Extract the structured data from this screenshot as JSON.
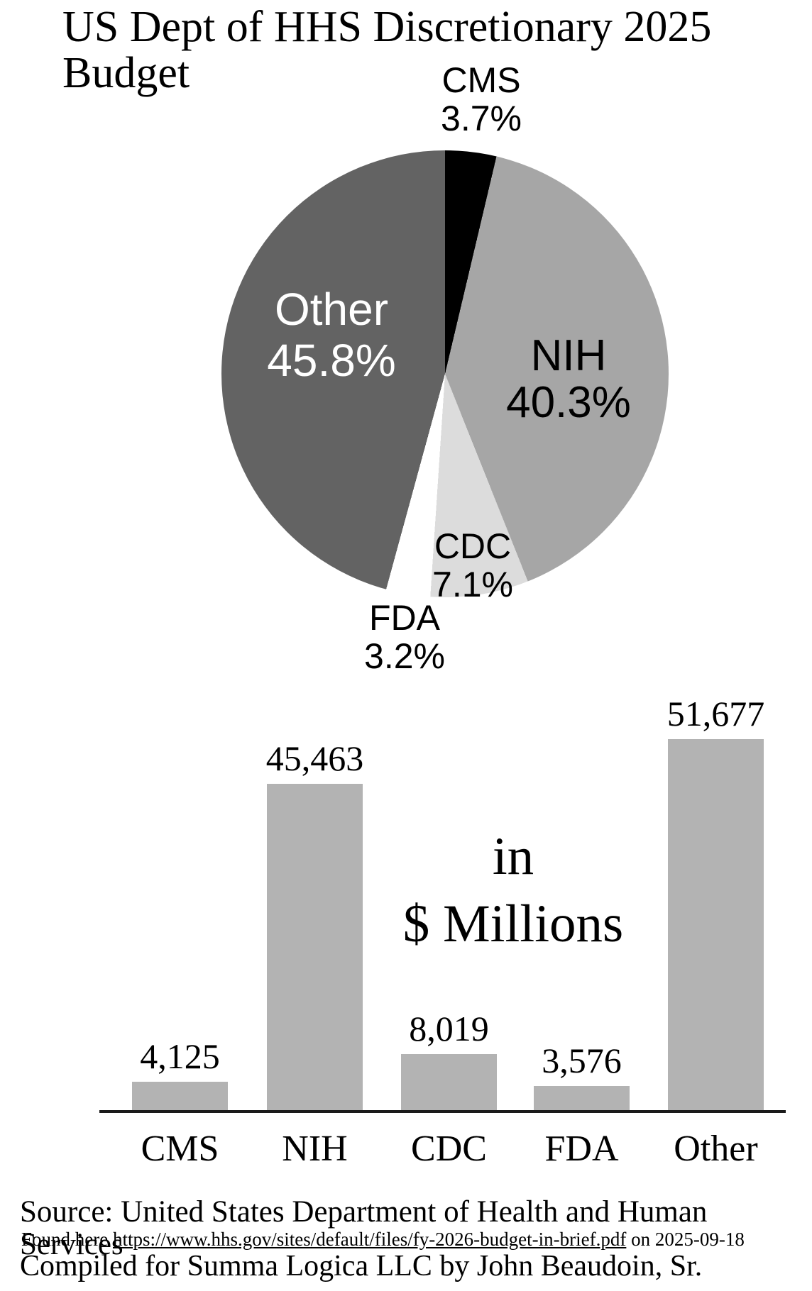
{
  "title": "US Dept of HHS Discretionary 2025 Budget",
  "chart_data": [
    {
      "type": "pie",
      "title": "US Dept of HHS Discretionary 2025 Budget",
      "categories": [
        "CMS",
        "NIH",
        "CDC",
        "FDA",
        "Other"
      ],
      "values_pct": [
        3.7,
        40.3,
        7.1,
        3.2,
        45.8
      ],
      "slice_labels": [
        "CMS 3.7%",
        "NIH 40.3%",
        "CDC 7.1%",
        "FDA 3.2%",
        "Other 45.8%"
      ],
      "colors": [
        "#000000",
        "#a6a6a6",
        "#dcdcdc",
        "#ffffff",
        "#636363"
      ],
      "label_colors": [
        "#000000",
        "#000000",
        "#000000",
        "#000000",
        "#ffffff"
      ],
      "start_angle_deg": 0,
      "direction": "clockwise",
      "legend_position": "none"
    },
    {
      "type": "bar",
      "categories": [
        "CMS",
        "NIH",
        "CDC",
        "FDA",
        "Other"
      ],
      "values": [
        4125,
        45463,
        8019,
        3576,
        51677
      ],
      "value_labels": [
        "4,125",
        "45,463",
        "8,019",
        "3,576",
        "51,677"
      ],
      "bar_color": "#b3b3b3",
      "axis_color": "#1a1a1a",
      "ylim": [
        0,
        51677
      ],
      "grid": false,
      "units_note_line1": "in",
      "units_note_line2": "$ Millions"
    }
  ],
  "source": {
    "line1": "Source: United States Department of Health and Human Services",
    "found_prefix": "Found here ",
    "url": "https://www.hhs.gov/sites/default/files/fy-2026-budget-in-brief.pdf",
    "found_suffix": " on 2025-09-18",
    "line3": "Compiled for Summa Logica LLC by John Beaudoin, Sr."
  }
}
